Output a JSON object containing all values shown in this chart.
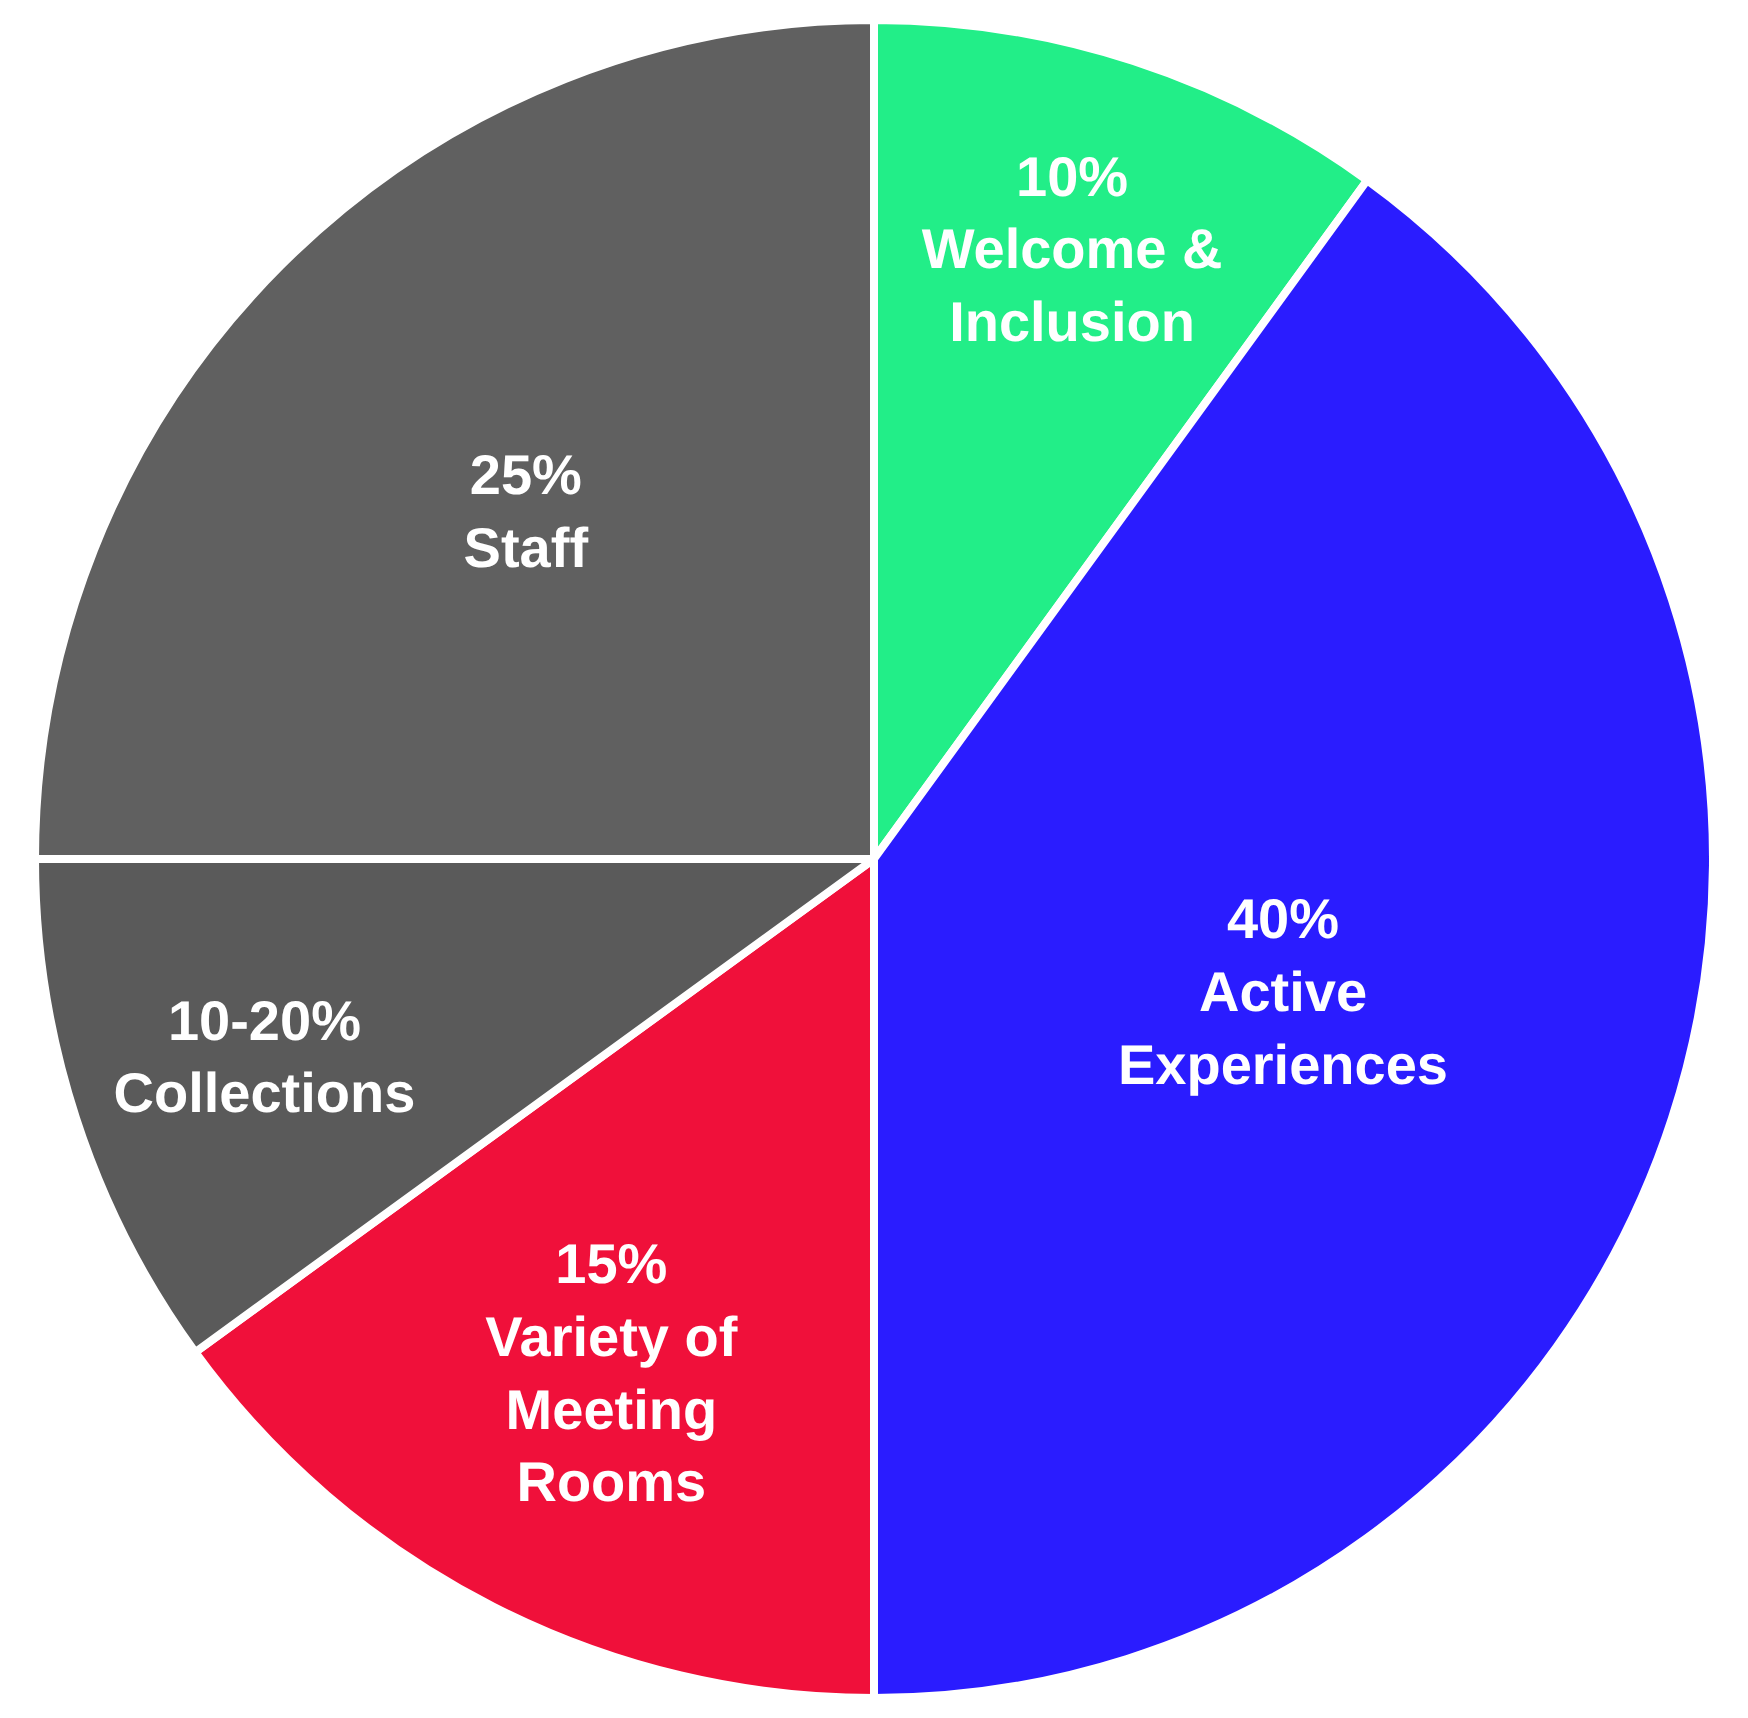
{
  "chart_data": {
    "type": "pie",
    "categories": [
      "Welcome & Inclusion",
      "Active Experiences",
      "Variety of Meeting Rooms",
      "Collections",
      "Staff"
    ],
    "values": [
      10,
      40,
      15,
      10,
      25
    ],
    "value_labels": [
      "10%",
      "40%",
      "15%",
      "10-20%",
      "25%"
    ],
    "colors": [
      "#22ee88",
      "#2a1cff",
      "#f0103a",
      "#5a5a5a",
      "#606060"
    ],
    "legend": false
  }
}
